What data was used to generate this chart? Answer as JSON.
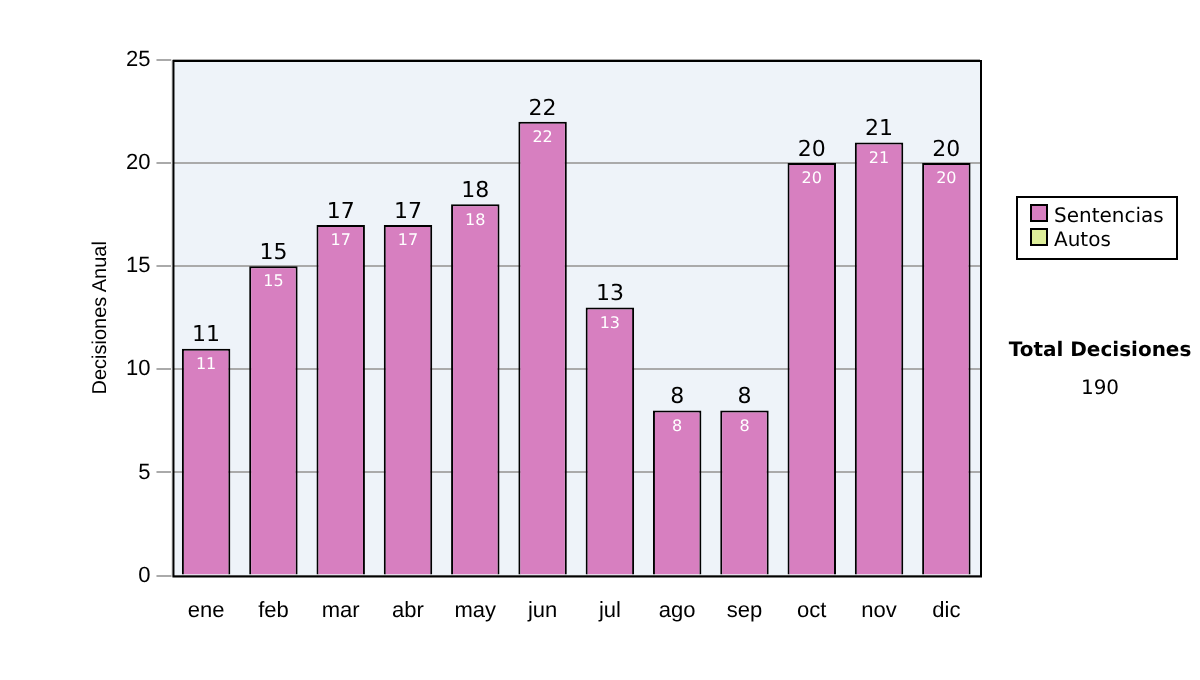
{
  "chart_data": {
    "type": "bar",
    "stacked": true,
    "ylabel": "Decisiones Anual",
    "categories": [
      "ene",
      "feb",
      "mar",
      "abr",
      "may",
      "jun",
      "jul",
      "ago",
      "sep",
      "oct",
      "nov",
      "dic"
    ],
    "series": [
      {
        "name": "Sentencias",
        "color": "#d77fc0",
        "values": [
          11,
          15,
          17,
          17,
          18,
          22,
          13,
          8,
          8,
          20,
          21,
          20
        ],
        "value_labels": [
          "11",
          "15",
          "17",
          "17",
          "18",
          "22",
          "13",
          "8",
          "8",
          "20",
          "21",
          "20"
        ]
      },
      {
        "name": "Autos",
        "color": "#ddee99",
        "values": [
          0,
          0,
          0,
          0,
          0,
          0,
          0,
          0,
          0,
          0,
          0,
          0
        ]
      }
    ],
    "totals": [
      "11",
      "15",
      "17",
      "17",
      "18",
      "22",
      "13",
      "8",
      "8",
      "20",
      "21",
      "20"
    ],
    "ylim": [
      0,
      25
    ],
    "yticks": [
      0,
      5,
      10,
      15,
      20,
      25
    ],
    "grid": "y",
    "legend": "right",
    "annotations": [
      "Total Decisiones",
      "190"
    ]
  }
}
